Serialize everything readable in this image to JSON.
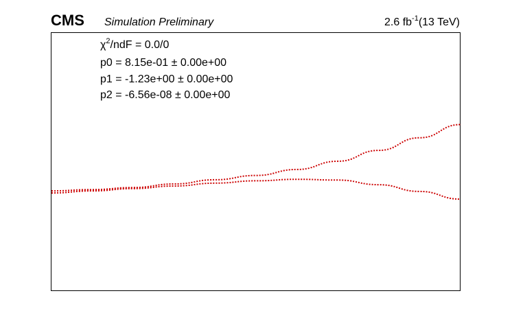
{
  "header": {
    "experiment": "CMS",
    "subtitle": "Simulation Preliminary",
    "lumi_value": "2.6 fb",
    "lumi_exponent": "-1",
    "lumi_energy": "(13 TeV)"
  },
  "fit_box": {
    "chi2_symbol": "χ",
    "chi2_exponent": "2",
    "chi2_rest": "/ndF = 0.0/0",
    "params": [
      {
        "name": "p0 = 8.15e-01",
        "pm": " ± ",
        "error": "0.00e+00"
      },
      {
        "name": "p1 = -1.23e+00 ",
        "pm": "± ",
        "error": "0.00e+00"
      },
      {
        "name": "p2 = -6.56e-08 ",
        "pm": "± ",
        "error": "0.00e+00"
      }
    ]
  },
  "chart_data": {
    "type": "line",
    "title": "",
    "xlabel": "",
    "ylabel": "",
    "xlim": [
      0,
      1
    ],
    "ylim": [
      0,
      1
    ],
    "grid": false,
    "series": [
      {
        "color": "#cc0000",
        "style": "dotted",
        "x": [
          0.0,
          0.1,
          0.2,
          0.3,
          0.4,
          0.5,
          0.6,
          0.7,
          0.8,
          0.9,
          1.0
        ],
        "y": [
          0.388,
          0.393,
          0.401,
          0.415,
          0.431,
          0.448,
          0.471,
          0.503,
          0.545,
          0.594,
          0.645
        ]
      },
      {
        "color": "#cc0000",
        "style": "dotted",
        "x": [
          0.0,
          0.1,
          0.2,
          0.3,
          0.4,
          0.5,
          0.6,
          0.7,
          0.8,
          0.9,
          1.0
        ],
        "y": [
          0.38,
          0.388,
          0.397,
          0.407,
          0.418,
          0.427,
          0.433,
          0.43,
          0.412,
          0.386,
          0.356
        ]
      }
    ]
  }
}
